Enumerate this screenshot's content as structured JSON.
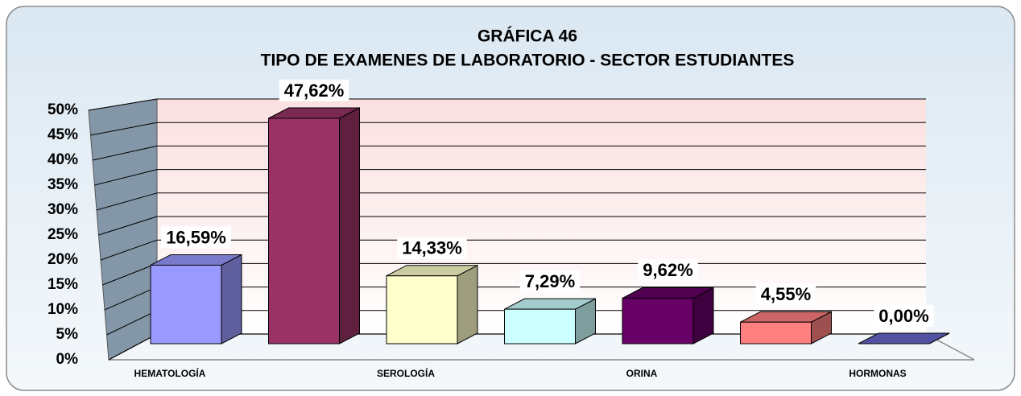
{
  "chart_data": {
    "type": "bar3d",
    "title": "GRÁFICA 46",
    "subtitle": "TIPO  DE EXAMENES DE LABORATORIO - SECTOR ESTUDIANTES",
    "categories": [
      "HEMATOLOGÍA",
      null,
      "SEROLOGÍA",
      null,
      "ORINA",
      null,
      "HORMONAS"
    ],
    "values": [
      16.59,
      47.62,
      14.33,
      7.29,
      9.62,
      4.55,
      0.0
    ],
    "value_labels": [
      "16,59%",
      "47,62%",
      "14,33%",
      "7,29%",
      "9,62%",
      "4,55%",
      "0,00%"
    ],
    "colors": [
      "#9999ff",
      "#993366",
      "#ffffcc",
      "#ccffff",
      "#660066",
      "#ff8080",
      "#6666cc"
    ],
    "ylim": [
      0,
      50
    ],
    "yticks": [
      {
        "value": 0,
        "label": "0%"
      },
      {
        "value": 5,
        "label": "5%"
      },
      {
        "value": 10,
        "label": "10%"
      },
      {
        "value": 15,
        "label": "15%"
      },
      {
        "value": 20,
        "label": "20%"
      },
      {
        "value": 25,
        "label": "25%"
      },
      {
        "value": 30,
        "label": "30%"
      },
      {
        "value": 35,
        "label": "35%"
      },
      {
        "value": 40,
        "label": "40%"
      },
      {
        "value": 45,
        "label": "45%"
      },
      {
        "value": 50,
        "label": "50%"
      }
    ],
    "grid": true
  }
}
